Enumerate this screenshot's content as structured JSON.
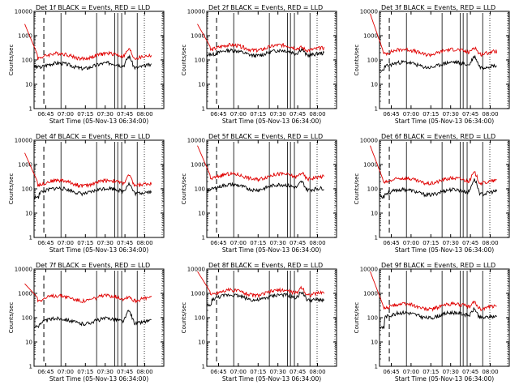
{
  "chart_data": [
    {
      "type": "line",
      "title": "Det 1f BLACK = Events, RED = LLD",
      "xlabel": "Start Time (05-Nov-13 06:34:00)",
      "ylabel": "Counts/sec",
      "yscale": "log",
      "ylim": [
        1,
        10000
      ],
      "xtick_labels": [
        "06:45",
        "07:00",
        "07:15",
        "07:30",
        "07:45",
        "08:00"
      ],
      "ytick_labels": [
        "1",
        "10",
        "100",
        "1000",
        "10000"
      ],
      "series": [
        {
          "name": "Events",
          "color": "#000000",
          "y_start": 50,
          "y_base": 60,
          "y_bump": 150,
          "y_end": 55
        },
        {
          "name": "LLD",
          "color": "#e00000",
          "y_start": 3000,
          "y_base": 150,
          "y_bump": 300,
          "y_end": 130
        }
      ]
    },
    {
      "type": "line",
      "title": "Det 2f BLACK = Events, RED = LLD",
      "xlabel": "Start Time (05-Nov-13 06:34:00)",
      "ylabel": "Counts/sec",
      "yscale": "log",
      "ylim": [
        1,
        10000
      ],
      "xtick_labels": [
        "06:45",
        "07:00",
        "07:15",
        "07:30",
        "07:45",
        "08:00"
      ],
      "ytick_labels": [
        "1",
        "10",
        "100",
        "1000",
        "10000"
      ],
      "series": [
        {
          "name": "Events",
          "color": "#000000",
          "y_start": 170,
          "y_base": 200,
          "y_bump": 320,
          "y_end": 150
        },
        {
          "name": "LLD",
          "color": "#e00000",
          "y_start": 3000,
          "y_base": 330,
          "y_bump": 400,
          "y_end": 240
        }
      ]
    },
    {
      "type": "line",
      "title": "Det 3f BLACK = Events, RED = LLD",
      "xlabel": "Start Time (05-Nov-13 06:34:00)",
      "ylabel": "Counts/sec",
      "yscale": "log",
      "ylim": [
        1,
        10000
      ],
      "xtick_labels": [
        "06:45",
        "07:00",
        "07:15",
        "07:30",
        "07:45",
        "08:00"
      ],
      "ytick_labels": [
        "1",
        "10",
        "100",
        "1000",
        "10000"
      ],
      "series": [
        {
          "name": "Events",
          "color": "#000000",
          "y_start": 35,
          "y_base": 65,
          "y_bump": 150,
          "y_end": 40
        },
        {
          "name": "LLD",
          "color": "#e00000",
          "y_start": 8000,
          "y_base": 220,
          "y_bump": 380,
          "y_end": 200
        }
      ]
    },
    {
      "type": "line",
      "title": "Det 4f BLACK = Events, RED = LLD",
      "xlabel": "Start Time (05-Nov-13 06:34:00)",
      "ylabel": "Counts/sec",
      "yscale": "log",
      "ylim": [
        1,
        10000
      ],
      "xtick_labels": [
        "06:45",
        "07:00",
        "07:15",
        "07:30",
        "07:45",
        "08:00"
      ],
      "ytick_labels": [
        "1",
        "10",
        "100",
        "1000",
        "10000"
      ],
      "series": [
        {
          "name": "Events",
          "color": "#000000",
          "y_start": 45,
          "y_base": 85,
          "y_bump": 180,
          "y_end": 50
        },
        {
          "name": "LLD",
          "color": "#e00000",
          "y_start": 3000,
          "y_base": 180,
          "y_bump": 380,
          "y_end": 120
        }
      ]
    },
    {
      "type": "line",
      "title": "Det 5f BLACK = Events, RED = LLD",
      "xlabel": "Start Time (05-Nov-13 06:34:00)",
      "ylabel": "Counts/sec",
      "yscale": "log",
      "ylim": [
        1,
        10000
      ],
      "xtick_labels": [
        "06:45",
        "07:00",
        "07:15",
        "07:30",
        "07:45",
        "08:00"
      ],
      "ytick_labels": [
        "1",
        "10",
        "100",
        "1000",
        "10000"
      ],
      "series": [
        {
          "name": "Events",
          "color": "#000000",
          "y_start": 90,
          "y_base": 120,
          "y_bump": 220,
          "y_end": 70
        },
        {
          "name": "LLD",
          "color": "#e00000",
          "y_start": 6000,
          "y_base": 330,
          "y_bump": 520,
          "y_end": 260
        }
      ]
    },
    {
      "type": "line",
      "title": "Det 6f BLACK = Events, RED = LLD",
      "xlabel": "Start Time (05-Nov-13 06:34:00)",
      "ylabel": "Counts/sec",
      "yscale": "log",
      "ylim": [
        1,
        10000
      ],
      "xtick_labels": [
        "06:45",
        "07:00",
        "07:15",
        "07:30",
        "07:45",
        "08:00"
      ],
      "ytick_labels": [
        "1",
        "10",
        "100",
        "1000",
        "10000"
      ],
      "series": [
        {
          "name": "Events",
          "color": "#000000",
          "y_start": 50,
          "y_base": 75,
          "y_bump": 250,
          "y_end": 70
        },
        {
          "name": "LLD",
          "color": "#e00000",
          "y_start": 6000,
          "y_base": 220,
          "y_bump": 500,
          "y_end": 180
        }
      ]
    },
    {
      "type": "line",
      "title": "Det 7f BLACK = Events, RED = LLD",
      "xlabel": "Start Time (05-Nov-13 06:34:00)",
      "ylabel": "Counts/sec",
      "yscale": "log",
      "ylim": [
        1,
        10000
      ],
      "xtick_labels": [
        "06:45",
        "07:00",
        "07:15",
        "07:30",
        "07:45",
        "08:00"
      ],
      "ytick_labels": [
        "1",
        "10",
        "100",
        "1000",
        "10000"
      ],
      "series": [
        {
          "name": "Events",
          "color": "#000000",
          "y_start": 40,
          "y_base": 75,
          "y_bump": 200,
          "y_end": 60
        },
        {
          "name": "LLD",
          "color": "#e00000",
          "y_start": 2500,
          "y_base": 650,
          "y_bump": 900,
          "y_end": 600
        }
      ]
    },
    {
      "type": "line",
      "title": "Det 8f BLACK = Events, RED = LLD",
      "xlabel": "Start Time (05-Nov-13 06:34:00)",
      "ylabel": "Counts/sec",
      "yscale": "log",
      "ylim": [
        1,
        10000
      ],
      "xtick_labels": [
        "06:45",
        "07:00",
        "07:15",
        "07:30",
        "07:45",
        "08:00"
      ],
      "ytick_labels": [
        "1",
        "10",
        "100",
        "1000",
        "10000"
      ],
      "series": [
        {
          "name": "Events",
          "color": "#000000",
          "y_start": 300,
          "y_base": 700,
          "y_bump": 1300,
          "y_end": 250
        },
        {
          "name": "LLD",
          "color": "#e00000",
          "y_start": 8000,
          "y_base": 1100,
          "y_bump": 2000,
          "y_end": 900
        }
      ]
    },
    {
      "type": "line",
      "title": "Det 9f BLACK = Events, RED = LLD",
      "xlabel": "Start Time (05-Nov-13 06:34:00)",
      "ylabel": "Counts/sec",
      "yscale": "log",
      "ylim": [
        1,
        10000
      ],
      "xtick_labels": [
        "06:45",
        "07:00",
        "07:15",
        "07:30",
        "07:45",
        "08:00"
      ],
      "ytick_labels": [
        "1",
        "10",
        "100",
        "1000",
        "10000"
      ],
      "series": [
        {
          "name": "Events",
          "color": "#000000",
          "y_start": 40,
          "y_base": 130,
          "y_bump": 250,
          "y_end": 70
        },
        {
          "name": "LLD",
          "color": "#e00000",
          "y_start": 8000,
          "y_base": 300,
          "y_bump": 500,
          "y_end": 250
        }
      ]
    }
  ]
}
